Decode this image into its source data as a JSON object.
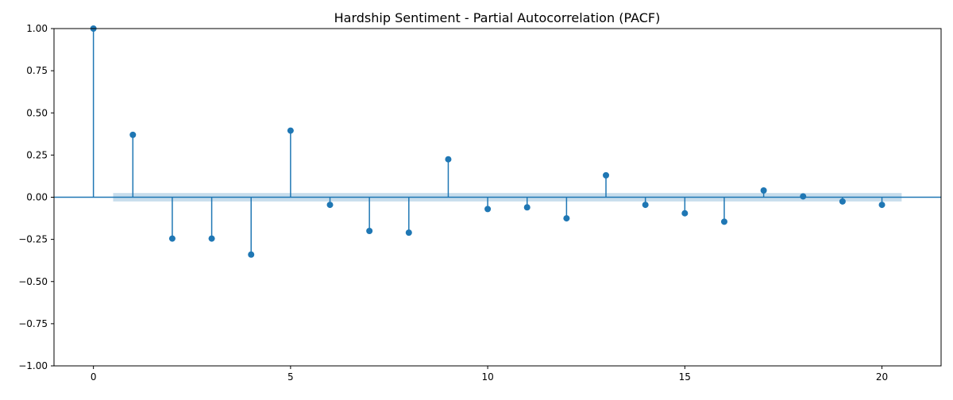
{
  "chart_data": {
    "type": "stem",
    "title": "Hardship Sentiment - Partial Autocorrelation (PACF)",
    "xlabel": "",
    "ylabel": "",
    "x": [
      0,
      1,
      2,
      3,
      4,
      5,
      6,
      7,
      8,
      9,
      10,
      11,
      12,
      13,
      14,
      15,
      16,
      17,
      18,
      19,
      20
    ],
    "values": [
      1.0,
      0.37,
      -0.245,
      -0.245,
      -0.34,
      0.395,
      -0.045,
      -0.2,
      -0.21,
      0.225,
      -0.07,
      -0.06,
      -0.125,
      0.13,
      -0.045,
      -0.095,
      -0.145,
      0.04,
      0.005,
      -0.025,
      -0.045
    ],
    "confidence_band": [
      -0.025,
      0.025
    ],
    "xlim": [
      -1,
      21.5
    ],
    "ylim": [
      -1.0,
      1.0
    ],
    "xticks": [
      0,
      5,
      10,
      15,
      20
    ],
    "xtick_labels": [
      "0",
      "5",
      "10",
      "15",
      "20"
    ],
    "yticks": [
      1.0,
      0.75,
      0.5,
      0.25,
      0.0,
      -0.25,
      -0.5,
      -0.75,
      -1.0
    ],
    "ytick_labels": [
      "1.00",
      "0.75",
      "0.50",
      "0.25",
      "0.00",
      "−0.25",
      "−0.50",
      "−0.75",
      "−1.00"
    ],
    "grid": false,
    "legend": "none",
    "colors": {
      "stem": "#1f77b4",
      "band": "#1f77b4",
      "axes": "#000000"
    }
  }
}
